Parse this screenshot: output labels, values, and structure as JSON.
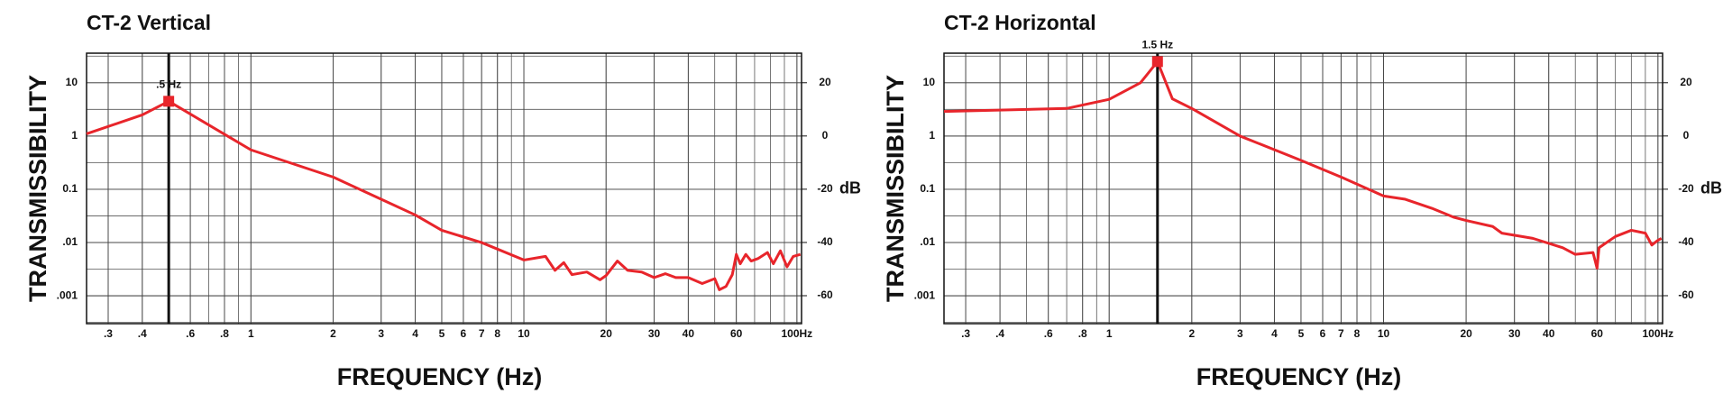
{
  "chart_data": [
    {
      "type": "line",
      "title": "CT-2 Vertical",
      "xlabel": "FREQUENCY (Hz)",
      "ylabel": "TRANSMISSIBILITY",
      "y2label": "dB",
      "xscale": "log",
      "yscale": "log",
      "grid": true,
      "xlim": [
        0.25,
        104
      ],
      "ylim": [
        0.0003,
        36
      ],
      "y2lim": [
        -70.5,
        31.1
      ],
      "xticks": [
        {
          "value": 0.3,
          "label": ".3"
        },
        {
          "value": 0.4,
          "label": ".4"
        },
        {
          "value": 0.6,
          "label": ".6"
        },
        {
          "value": 0.8,
          "label": ".8"
        },
        1,
        2,
        3,
        4,
        5,
        6,
        7,
        8,
        10,
        20,
        30,
        40,
        60,
        {
          "value": 100,
          "label": "100Hz"
        }
      ],
      "yticks": [
        10,
        1,
        0.1,
        {
          "value": 0.01,
          "label": ".01"
        },
        {
          "value": 0.001,
          "label": ".001"
        }
      ],
      "y2ticks": [
        20,
        0,
        -20,
        -40,
        -60
      ],
      "annotation": {
        "text": ".5 Hz",
        "x": 0.5,
        "y": 4.5
      },
      "x": [
        0.25,
        0.4,
        0.5,
        1,
        2,
        3,
        4,
        5,
        7,
        10,
        12,
        13,
        14,
        15,
        17,
        19,
        20,
        22,
        24,
        27,
        30,
        33,
        36,
        40,
        45,
        50,
        52,
        55,
        58,
        60,
        62,
        65,
        68,
        72,
        78,
        82,
        87,
        92,
        97,
        103
      ],
      "series": [
        {
          "color": "#e8252b",
          "values": [
            1.1,
            2.5,
            4.5,
            0.55,
            0.17,
            0.065,
            0.033,
            0.017,
            0.01,
            0.0047,
            0.0055,
            0.003,
            0.0042,
            0.0025,
            0.0028,
            0.002,
            0.0024,
            0.0045,
            0.003,
            0.0028,
            0.0022,
            0.0026,
            0.0022,
            0.0022,
            0.0017,
            0.0021,
            0.0013,
            0.0015,
            0.0025,
            0.006,
            0.004,
            0.006,
            0.0045,
            0.005,
            0.0065,
            0.004,
            0.007,
            0.0035,
            0.0055,
            0.006
          ]
        }
      ]
    },
    {
      "type": "line",
      "title": "CT-2 Horizontal",
      "xlabel": "FREQUENCY (Hz)",
      "ylabel": "TRANSMISSIBILITY",
      "y2label": "dB",
      "xscale": "log",
      "yscale": "log",
      "grid": true,
      "xlim": [
        0.25,
        104
      ],
      "ylim": [
        0.0003,
        36
      ],
      "y2lim": [
        -70.5,
        31.1
      ],
      "xticks": [
        {
          "value": 0.3,
          "label": ".3"
        },
        {
          "value": 0.4,
          "label": ".4"
        },
        {
          "value": 0.6,
          "label": ".6"
        },
        {
          "value": 0.8,
          "label": ".8"
        },
        1,
        2,
        3,
        4,
        5,
        6,
        7,
        8,
        10,
        20,
        30,
        40,
        60,
        {
          "value": 100,
          "label": "100Hz"
        }
      ],
      "yticks": [
        10,
        1,
        0.1,
        {
          "value": 0.01,
          "label": ".01"
        },
        {
          "value": 0.001,
          "label": ".001"
        }
      ],
      "y2ticks": [
        20,
        0,
        -20,
        -40,
        -60
      ],
      "annotation": {
        "text": "1.5 Hz",
        "x": 1.5,
        "y": 25
      },
      "x": [
        0.25,
        0.7,
        1,
        1.3,
        1.5,
        1.7,
        2,
        3,
        5,
        7,
        10,
        12,
        15,
        18,
        20,
        25,
        27,
        35,
        45,
        50,
        58,
        60,
        61,
        70,
        80,
        90,
        95,
        100,
        103
      ],
      "series": [
        {
          "color": "#e8252b",
          "values": [
            2.9,
            3.3,
            4.9,
            10,
            25,
            5,
            3.3,
            1,
            0.35,
            0.17,
            0.075,
            0.065,
            0.044,
            0.03,
            0.026,
            0.02,
            0.015,
            0.012,
            0.008,
            0.006,
            0.0065,
            0.0033,
            0.008,
            0.013,
            0.017,
            0.015,
            0.009,
            0.011,
            0.012
          ]
        }
      ]
    }
  ]
}
